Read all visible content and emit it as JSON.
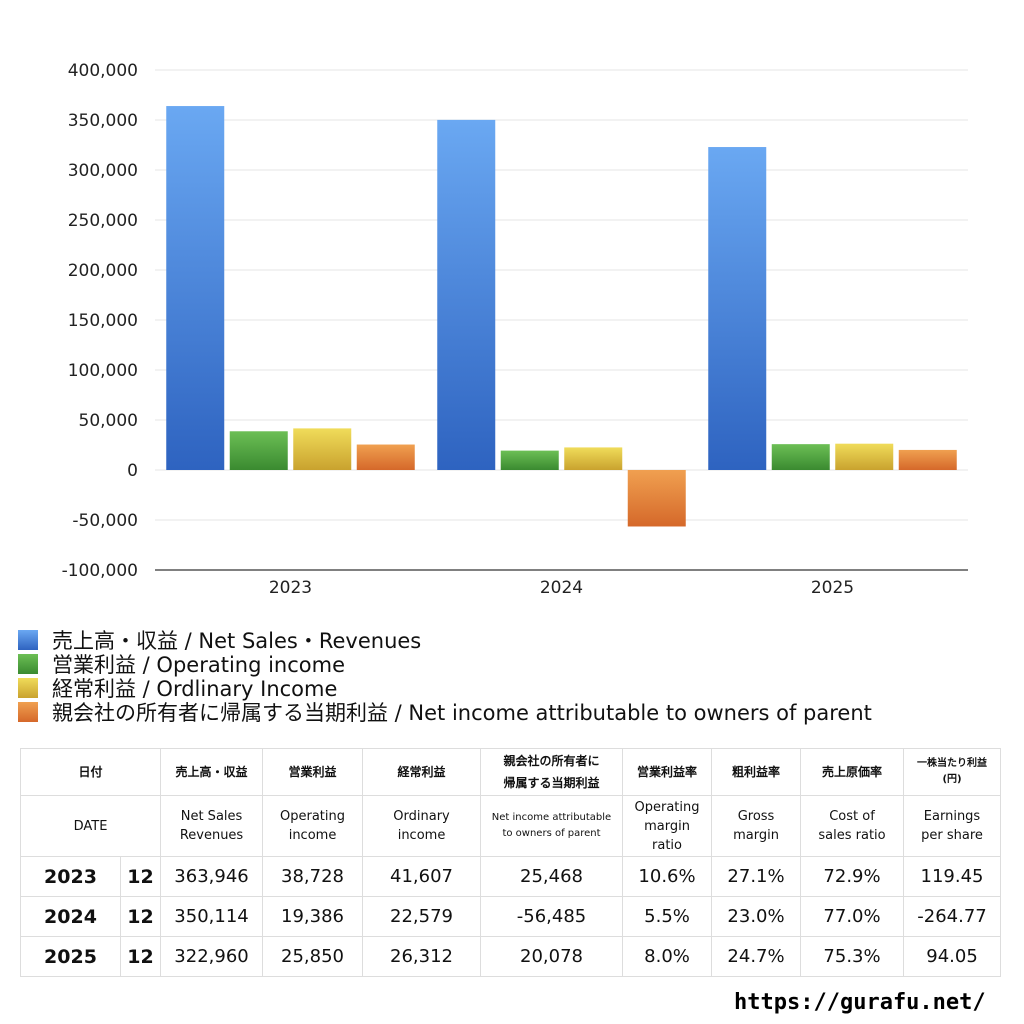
{
  "chart_data": {
    "type": "bar",
    "categories": [
      "2023",
      "2024",
      "2025"
    ],
    "series": [
      {
        "name": "売上高・収益 / Net Sales・Revenues",
        "values": [
          363946,
          350114,
          322960
        ],
        "color": "#3a7bd5"
      },
      {
        "name": "営業利益 / Operating income",
        "values": [
          38728,
          19386,
          25850
        ],
        "color": "#4e9e3c"
      },
      {
        "name": "経常利益 / Ordlinary Income",
        "values": [
          41607,
          22579,
          26312
        ],
        "color": "#d4b53a"
      },
      {
        "name": "親会社の所有者に帰属する当期利益 / Net income attributable to owners of parent",
        "values": [
          25468,
          -56485,
          20078
        ],
        "color": "#dd7a2c"
      }
    ],
    "ylim": [
      -100000,
      400000
    ],
    "yticks": [
      "400,000",
      "350,000",
      "300,000",
      "250,000",
      "200,000",
      "150,000",
      "100,000",
      "50,000",
      "0",
      "-50,000",
      "-100,000"
    ],
    "ytick_values": [
      400000,
      350000,
      300000,
      250000,
      200000,
      150000,
      100000,
      50000,
      0,
      -50000,
      -100000
    ],
    "grid": true,
    "legend_position": "bottom-left"
  },
  "table": {
    "header_jp": [
      "日付",
      "売上高・収益",
      "営業利益",
      "経常利益",
      "親会社の所有者に",
      "帰属する当期利益",
      "営業利益率",
      "粗利益率",
      "売上原価率",
      "一株当たり利益",
      "(円)"
    ],
    "header_en": {
      "date": "DATE",
      "sales_1": "Net Sales",
      "sales_2": "Revenues",
      "op_1": "Operating",
      "op_2": "income",
      "ord_1": "Ordinary",
      "ord_2": "income",
      "net_1": "Net income attributable",
      "net_2": "to owners of parent",
      "opm_1": "Operating",
      "opm_2": "margin",
      "opm_3": "ratio",
      "gm_1": "Gross",
      "gm_2": "margin",
      "cos_1": "Cost of",
      "cos_2": "sales ratio",
      "eps_1": "Earnings",
      "eps_2": "per share"
    },
    "rows": [
      {
        "year": "2023",
        "month": "12",
        "sales": "363,946",
        "op": "38,728",
        "ord": "41,607",
        "net": "25,468",
        "opm": "10.6%",
        "gm": "27.1%",
        "cos": "72.9%",
        "eps": "119.45"
      },
      {
        "year": "2024",
        "month": "12",
        "sales": "350,114",
        "op": "19,386",
        "ord": "22,579",
        "net": "-56,485",
        "opm": "5.5%",
        "gm": "23.0%",
        "cos": "77.0%",
        "eps": "-264.77"
      },
      {
        "year": "2025",
        "month": "12",
        "sales": "322,960",
        "op": "25,850",
        "ord": "26,312",
        "net": "20,078",
        "opm": "8.0%",
        "gm": "24.7%",
        "cos": "75.3%",
        "eps": "94.05"
      }
    ]
  },
  "source": "https://gurafu.net/"
}
